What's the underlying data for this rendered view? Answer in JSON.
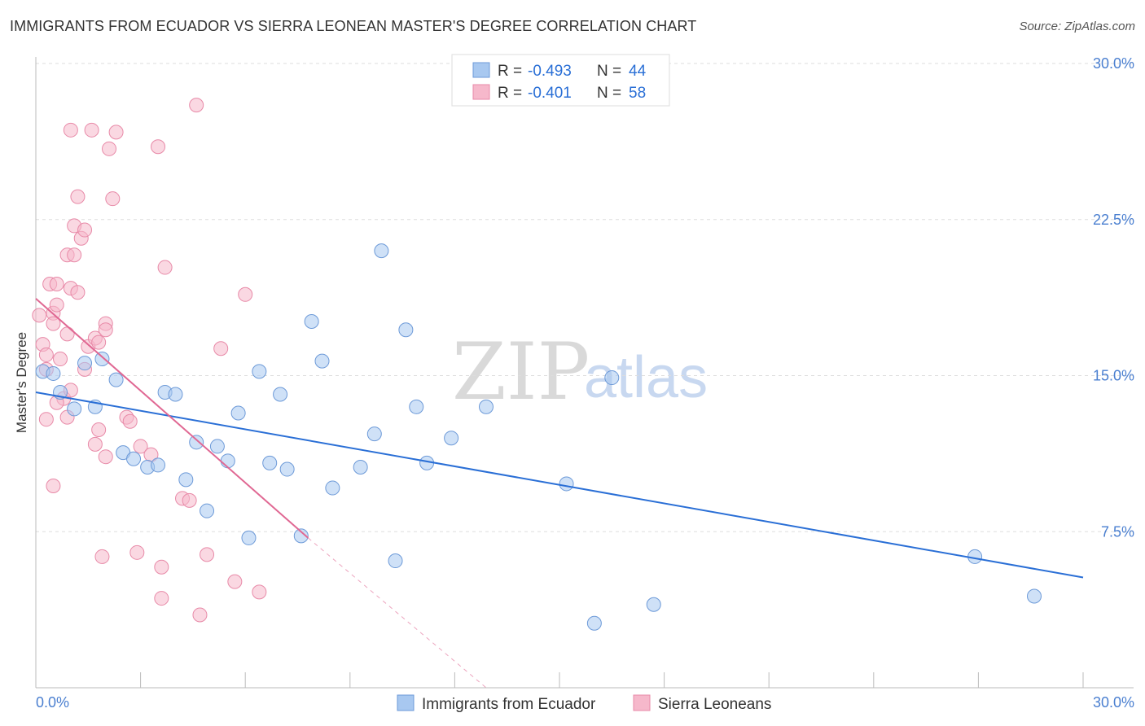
{
  "header": {
    "title": "IMMIGRANTS FROM ECUADOR VS SIERRA LEONEAN MASTER'S DEGREE CORRELATION CHART",
    "source": "Source: ZipAtlas.com"
  },
  "watermark": {
    "zip": "ZIP",
    "atlas": "atlas"
  },
  "legend": {
    "r_label": "R =",
    "n_label": "N =",
    "entries": [
      {
        "r": "-0.493",
        "n": "44"
      },
      {
        "r": "-0.401",
        "n": "58"
      }
    ]
  },
  "bottom_legend": [
    "Immigrants from Ecuador",
    "Sierra Leoneans"
  ],
  "axes": {
    "ylabel": "Master's Degree",
    "x_left": "0.0%",
    "x_right": "30.0%",
    "y_ticks": [
      "7.5%",
      "15.0%",
      "22.5%",
      "30.0%"
    ]
  },
  "colors": {
    "blue_fill": "#a8c8f0",
    "blue_stroke": "#6d9ad8",
    "blue_line": "#2a6fd6",
    "pink_fill": "#f6b8cb",
    "pink_stroke": "#e88aa8",
    "pink_line": "#e06893",
    "grid": "#dddddd"
  },
  "chart_data": {
    "type": "scatter",
    "title": "IMMIGRANTS FROM ECUADOR VS SIERRA LEONEAN MASTER'S DEGREE CORRELATION CHART",
    "xlabel": "",
    "ylabel": "Master's Degree",
    "xlim": [
      0,
      30
    ],
    "ylim": [
      0,
      30
    ],
    "y_ticks": [
      7.5,
      15.0,
      22.5,
      30.0
    ],
    "grid": true,
    "legend_position": "top-center",
    "series": [
      {
        "name": "Immigrants from Ecuador",
        "r": -0.493,
        "n": 44,
        "trend": {
          "x0": 0,
          "y0": 14.2,
          "x1": 30,
          "y1": 5.3
        },
        "points": [
          [
            0.2,
            15.2
          ],
          [
            0.5,
            15.1
          ],
          [
            0.7,
            14.2
          ],
          [
            1.1,
            13.4
          ],
          [
            1.4,
            15.6
          ],
          [
            1.9,
            15.8
          ],
          [
            2.3,
            14.8
          ],
          [
            1.7,
            13.5
          ],
          [
            2.5,
            11.3
          ],
          [
            2.8,
            11.0
          ],
          [
            3.2,
            10.6
          ],
          [
            3.5,
            10.7
          ],
          [
            3.7,
            14.2
          ],
          [
            4.0,
            14.1
          ],
          [
            4.3,
            10.0
          ],
          [
            4.6,
            11.8
          ],
          [
            4.9,
            8.5
          ],
          [
            5.2,
            11.6
          ],
          [
            5.5,
            10.9
          ],
          [
            5.8,
            13.2
          ],
          [
            6.1,
            7.2
          ],
          [
            6.4,
            15.2
          ],
          [
            6.7,
            10.8
          ],
          [
            7.0,
            14.1
          ],
          [
            7.2,
            10.5
          ],
          [
            7.6,
            7.3
          ],
          [
            7.9,
            17.6
          ],
          [
            8.2,
            15.7
          ],
          [
            8.5,
            9.6
          ],
          [
            9.3,
            10.6
          ],
          [
            9.7,
            12.2
          ],
          [
            9.9,
            21.0
          ],
          [
            10.3,
            6.1
          ],
          [
            10.6,
            17.2
          ],
          [
            10.9,
            13.5
          ],
          [
            11.2,
            10.8
          ],
          [
            11.9,
            12.0
          ],
          [
            12.9,
            13.5
          ],
          [
            15.2,
            9.8
          ],
          [
            16.0,
            3.1
          ],
          [
            16.5,
            14.9
          ],
          [
            17.7,
            4.0
          ],
          [
            26.9,
            6.3
          ],
          [
            28.6,
            4.4
          ]
        ]
      },
      {
        "name": "Sierra Leoneans",
        "r": -0.401,
        "n": 58,
        "trend": {
          "x0": 0,
          "y0": 18.7,
          "x1": 7.8,
          "y1": 7.2
        },
        "trend_dashed": {
          "x0": 7.8,
          "y0": 7.2,
          "x1": 12.9,
          "y1": -0.3
        },
        "points": [
          [
            0.1,
            17.9
          ],
          [
            0.2,
            16.5
          ],
          [
            0.3,
            16.0
          ],
          [
            0.3,
            15.3
          ],
          [
            0.4,
            19.4
          ],
          [
            0.5,
            18.0
          ],
          [
            0.5,
            17.5
          ],
          [
            0.6,
            19.4
          ],
          [
            0.6,
            18.4
          ],
          [
            0.7,
            15.8
          ],
          [
            0.8,
            13.9
          ],
          [
            0.9,
            17.0
          ],
          [
            0.9,
            13.0
          ],
          [
            0.9,
            20.8
          ],
          [
            1.0,
            19.2
          ],
          [
            1.0,
            14.3
          ],
          [
            1.1,
            22.2
          ],
          [
            1.1,
            20.8
          ],
          [
            1.2,
            23.6
          ],
          [
            1.2,
            19.0
          ],
          [
            1.3,
            21.6
          ],
          [
            1.4,
            22.0
          ],
          [
            1.5,
            16.4
          ],
          [
            1.6,
            26.8
          ],
          [
            1.0,
            26.8
          ],
          [
            1.7,
            11.7
          ],
          [
            1.7,
            16.8
          ],
          [
            1.8,
            12.4
          ],
          [
            1.8,
            16.6
          ],
          [
            2.0,
            17.5
          ],
          [
            2.0,
            17.2
          ],
          [
            2.1,
            25.9
          ],
          [
            2.2,
            23.5
          ],
          [
            2.3,
            26.7
          ],
          [
            2.0,
            11.1
          ],
          [
            2.6,
            13.0
          ],
          [
            2.7,
            12.8
          ],
          [
            3.0,
            11.6
          ],
          [
            3.3,
            11.2
          ],
          [
            3.5,
            26.0
          ],
          [
            3.7,
            20.2
          ],
          [
            3.6,
            5.8
          ],
          [
            3.6,
            4.3
          ],
          [
            4.2,
            9.1
          ],
          [
            4.4,
            9.0
          ],
          [
            4.6,
            28.0
          ],
          [
            4.7,
            3.5
          ],
          [
            4.9,
            6.4
          ],
          [
            5.3,
            16.3
          ],
          [
            5.7,
            5.1
          ],
          [
            6.0,
            18.9
          ],
          [
            6.4,
            4.6
          ],
          [
            0.5,
            9.7
          ],
          [
            0.3,
            12.9
          ],
          [
            1.9,
            6.3
          ],
          [
            0.6,
            13.7
          ],
          [
            1.4,
            15.3
          ],
          [
            2.9,
            6.5
          ]
        ]
      }
    ]
  }
}
